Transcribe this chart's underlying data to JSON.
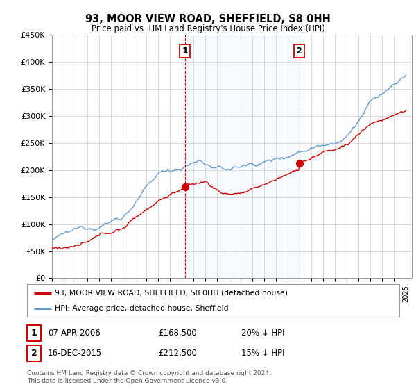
{
  "title": "93, MOOR VIEW ROAD, SHEFFIELD, S8 0HH",
  "subtitle": "Price paid vs. HM Land Registry's House Price Index (HPI)",
  "ylim": [
    0,
    450000
  ],
  "xlim_start": 1995.0,
  "xlim_end": 2025.5,
  "marker1_x": 2006.27,
  "marker1_y": 168500,
  "marker1_label": "1",
  "marker1_vline_color": "#cc0000",
  "marker2_x": 2015.96,
  "marker2_y": 212500,
  "marker2_label": "2",
  "marker2_vline_color": "#aaaaaa",
  "shade_color": "#ddeeff",
  "sale_color": "#cc0000",
  "hpi_color": "#6699cc",
  "legend_sale": "93, MOOR VIEW ROAD, SHEFFIELD, S8 0HH (detached house)",
  "legend_hpi": "HPI: Average price, detached house, Sheffield",
  "row1_label": "1",
  "row1_date": "07-APR-2006",
  "row1_price": "£168,500",
  "row1_hpi": "20% ↓ HPI",
  "row2_label": "2",
  "row2_date": "16-DEC-2015",
  "row2_price": "£212,500",
  "row2_hpi": "15% ↓ HPI",
  "footnote": "Contains HM Land Registry data © Crown copyright and database right 2024.\nThis data is licensed under the Open Government Licence v3.0.",
  "bg_color": "#ffffff",
  "grid_color": "#cccccc"
}
